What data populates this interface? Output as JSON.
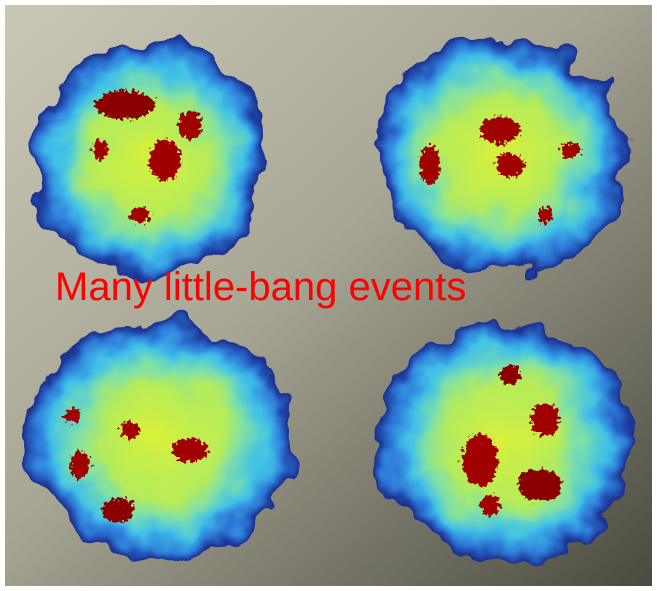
{
  "caption": "Many little-bang events"
}
